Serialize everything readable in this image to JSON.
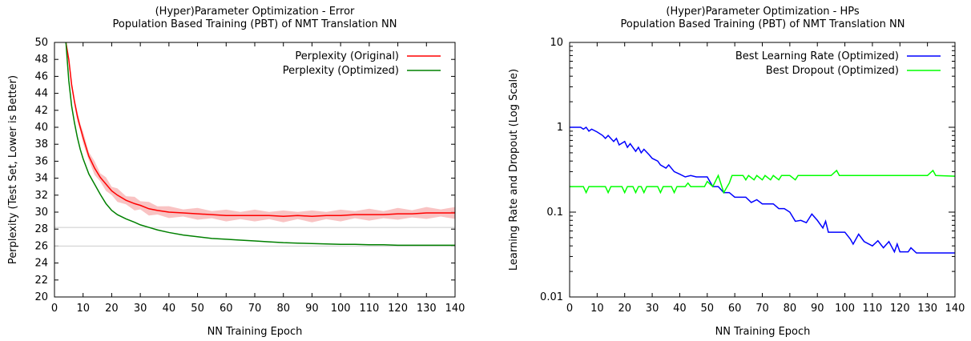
{
  "chart_data": [
    {
      "type": "line",
      "title": "(Hyper)Parameter Optimization - Error",
      "subtitle": "Population Based Training (PBT) of NMT Translation NN",
      "xlabel": "NN Training Epoch",
      "ylabel": "Perplexity (Test Set, Lower is Better)",
      "xlim": [
        0,
        140
      ],
      "ylim": [
        20,
        50
      ],
      "xticks": [
        "0",
        "10",
        "20",
        "30",
        "40",
        "50",
        "60",
        "70",
        "80",
        "90",
        "100",
        "110",
        "120",
        "130",
        "140"
      ],
      "yticks": [
        "20",
        "22",
        "24",
        "26",
        "28",
        "30",
        "32",
        "34",
        "36",
        "38",
        "40",
        "42",
        "44",
        "46",
        "48",
        "50"
      ],
      "reference_lines": [
        28.2,
        26.0
      ],
      "legend_position": "top-right",
      "x": [
        4,
        5,
        6,
        7,
        8,
        9,
        10,
        12,
        14,
        16,
        18,
        20,
        22,
        25,
        28,
        30,
        33,
        36,
        40,
        45,
        50,
        55,
        60,
        65,
        70,
        75,
        80,
        85,
        90,
        95,
        100,
        105,
        110,
        115,
        120,
        125,
        130,
        135,
        140
      ],
      "series": [
        {
          "name": "Perplexity (Original)",
          "color": "#ff0000",
          "band_color": "#f8b4b4",
          "values": [
            50,
            48,
            45,
            43,
            41.3,
            40,
            38.8,
            36.6,
            35.2,
            34.1,
            33.3,
            32.5,
            32,
            31.4,
            31,
            30.8,
            30.4,
            30.2,
            30,
            29.9,
            29.8,
            29.7,
            29.6,
            29.6,
            29.6,
            29.6,
            29.5,
            29.6,
            29.5,
            29.6,
            29.6,
            29.7,
            29.7,
            29.7,
            29.8,
            29.8,
            29.9,
            29.9,
            29.9
          ],
          "band": [
            0.3,
            0.4,
            0.5,
            0.6,
            0.6,
            0.7,
            0.7,
            0.8,
            0.8,
            0.8,
            0.8,
            0.8,
            0.8,
            0.8,
            0.8,
            0.8,
            0.8,
            0.8,
            0.7,
            0.7,
            0.7,
            0.7,
            0.7,
            0.7,
            0.7,
            0.7,
            0.7,
            0.7,
            0.7,
            0.7,
            0.7,
            0.7,
            0.7,
            0.7,
            0.7,
            0.7,
            0.7,
            0.7,
            0.7
          ]
        },
        {
          "name": "Perplexity (Optimized)",
          "color": "#008000",
          "values": [
            50,
            45.5,
            42.5,
            40.5,
            38.8,
            37.4,
            36.3,
            34.5,
            33.3,
            32.1,
            31,
            30.2,
            29.7,
            29.2,
            28.8,
            28.5,
            28.2,
            27.9,
            27.6,
            27.3,
            27.1,
            26.9,
            26.8,
            26.7,
            26.6,
            26.5,
            26.4,
            26.35,
            26.3,
            26.25,
            26.2,
            26.2,
            26.15,
            26.15,
            26.1,
            26.1,
            26.1,
            26.1,
            26.1
          ]
        }
      ]
    },
    {
      "type": "line",
      "title": "(Hyper)Parameter Optimization - HPs",
      "subtitle": "Population Based Training (PBT) of NMT Translation NN",
      "xlabel": "NN Training Epoch",
      "ylabel": "Learning Rate and Dropout (Log Scale)",
      "xlim": [
        0,
        140
      ],
      "ylim": [
        0.01,
        10
      ],
      "yscale": "log",
      "xticks": [
        "0",
        "10",
        "20",
        "30",
        "40",
        "50",
        "60",
        "70",
        "80",
        "90",
        "100",
        "110",
        "120",
        "130",
        "140"
      ],
      "yticks": [
        "0.01",
        "0.1",
        "1",
        "10"
      ],
      "legend_position": "top-right",
      "series": [
        {
          "name": "Best Learning Rate (Optimized)",
          "color": "#0000ff",
          "points": [
            [
              0,
              1
            ],
            [
              4,
              1
            ],
            [
              5,
              0.95
            ],
            [
              6,
              1
            ],
            [
              7,
              0.9
            ],
            [
              8,
              0.95
            ],
            [
              10,
              0.88
            ],
            [
              12,
              0.8
            ],
            [
              13,
              0.74
            ],
            [
              14,
              0.8
            ],
            [
              16,
              0.68
            ],
            [
              17,
              0.74
            ],
            [
              18,
              0.62
            ],
            [
              20,
              0.68
            ],
            [
              21,
              0.58
            ],
            [
              22,
              0.64
            ],
            [
              24,
              0.52
            ],
            [
              25,
              0.58
            ],
            [
              26,
              0.5
            ],
            [
              27,
              0.55
            ],
            [
              29,
              0.47
            ],
            [
              30,
              0.43
            ],
            [
              32,
              0.4
            ],
            [
              33,
              0.36
            ],
            [
              35,
              0.33
            ],
            [
              36,
              0.36
            ],
            [
              38,
              0.3
            ],
            [
              40,
              0.28
            ],
            [
              42,
              0.26
            ],
            [
              44,
              0.27
            ],
            [
              46,
              0.26
            ],
            [
              50,
              0.26
            ],
            [
              52,
              0.2
            ],
            [
              54,
              0.2
            ],
            [
              56,
              0.17
            ],
            [
              58,
              0.17
            ],
            [
              60,
              0.15
            ],
            [
              64,
              0.15
            ],
            [
              66,
              0.13
            ],
            [
              68,
              0.14
            ],
            [
              70,
              0.125
            ],
            [
              74,
              0.125
            ],
            [
              76,
              0.11
            ],
            [
              78,
              0.11
            ],
            [
              80,
              0.1
            ],
            [
              82,
              0.078
            ],
            [
              84,
              0.08
            ],
            [
              86,
              0.075
            ],
            [
              88,
              0.095
            ],
            [
              90,
              0.08
            ],
            [
              92,
              0.065
            ],
            [
              93,
              0.078
            ],
            [
              94,
              0.058
            ],
            [
              100,
              0.058
            ],
            [
              102,
              0.048
            ],
            [
              103,
              0.042
            ],
            [
              105,
              0.055
            ],
            [
              107,
              0.045
            ],
            [
              110,
              0.04
            ],
            [
              112,
              0.046
            ],
            [
              114,
              0.038
            ],
            [
              116,
              0.045
            ],
            [
              118,
              0.034
            ],
            [
              119,
              0.042
            ],
            [
              120,
              0.034
            ],
            [
              123,
              0.034
            ],
            [
              124,
              0.038
            ],
            [
              126,
              0.033
            ],
            [
              140,
              0.033
            ]
          ]
        },
        {
          "name": "Best Dropout (Optimized)",
          "color": "#00ff00",
          "points": [
            [
              0,
              0.2
            ],
            [
              5,
              0.2
            ],
            [
              6,
              0.17
            ],
            [
              7,
              0.2
            ],
            [
              13,
              0.2
            ],
            [
              14,
              0.17
            ],
            [
              15,
              0.2
            ],
            [
              19,
              0.2
            ],
            [
              20,
              0.17
            ],
            [
              21,
              0.2
            ],
            [
              23,
              0.2
            ],
            [
              24,
              0.17
            ],
            [
              25,
              0.2
            ],
            [
              26,
              0.2
            ],
            [
              27,
              0.17
            ],
            [
              28,
              0.2
            ],
            [
              32,
              0.2
            ],
            [
              33,
              0.17
            ],
            [
              34,
              0.2
            ],
            [
              37,
              0.2
            ],
            [
              38,
              0.17
            ],
            [
              39,
              0.2
            ],
            [
              42,
              0.2
            ],
            [
              43,
              0.22
            ],
            [
              44,
              0.2
            ],
            [
              49,
              0.2
            ],
            [
              50,
              0.23
            ],
            [
              52,
              0.2
            ],
            [
              54,
              0.27
            ],
            [
              56,
              0.17
            ],
            [
              58,
              0.22
            ],
            [
              59,
              0.27
            ],
            [
              63,
              0.27
            ],
            [
              64,
              0.24
            ],
            [
              65,
              0.27
            ],
            [
              67,
              0.24
            ],
            [
              68,
              0.27
            ],
            [
              70,
              0.24
            ],
            [
              71,
              0.27
            ],
            [
              73,
              0.24
            ],
            [
              74,
              0.27
            ],
            [
              76,
              0.24
            ],
            [
              77,
              0.27
            ],
            [
              80,
              0.27
            ],
            [
              82,
              0.24
            ],
            [
              83,
              0.27
            ],
            [
              95,
              0.27
            ],
            [
              97,
              0.31
            ],
            [
              98,
              0.27
            ],
            [
              130,
              0.27
            ],
            [
              132,
              0.31
            ],
            [
              133,
              0.27
            ],
            [
              140,
              0.265
            ]
          ]
        }
      ]
    }
  ]
}
